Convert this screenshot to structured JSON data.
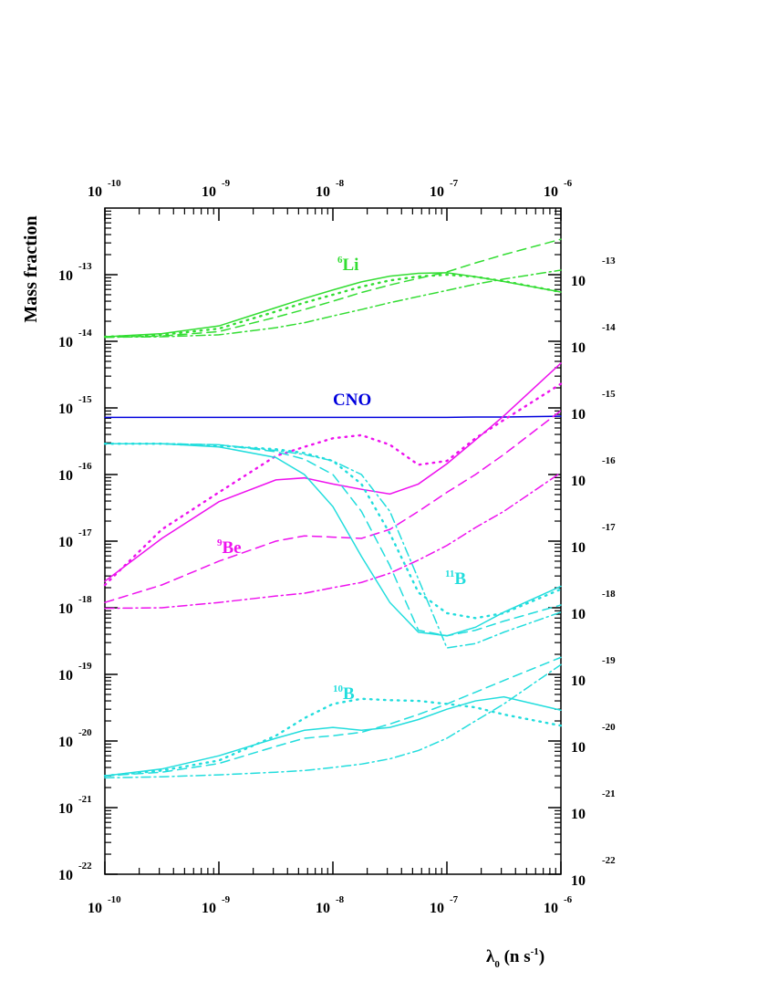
{
  "chart_data": {
    "type": "line",
    "ylabel": "Mass fraction",
    "xlabel": [
      "λ",
      "0",
      " (n s",
      "-1",
      ")"
    ],
    "xscale": "log",
    "yscale": "log",
    "xlim": [
      1e-10,
      1e-06
    ],
    "ylim": [
      1e-22,
      1e-12
    ],
    "xticks": [
      {
        "value": 1e-10,
        "label": "10",
        "exponent": "-10"
      },
      {
        "value": 1e-09,
        "label": "10",
        "exponent": "-9"
      },
      {
        "value": 1e-08,
        "label": "10",
        "exponent": "-8"
      },
      {
        "value": 1e-07,
        "label": "10",
        "exponent": "-7"
      },
      {
        "value": 1e-06,
        "label": "10",
        "exponent": "-6"
      }
    ],
    "yticks": [
      {
        "value": 1e-22,
        "label": "10",
        "exponent": "-22"
      },
      {
        "value": 1e-21,
        "label": "10",
        "exponent": "-21"
      },
      {
        "value": 1e-20,
        "label": "10",
        "exponent": "-20"
      },
      {
        "value": 1e-19,
        "label": "10",
        "exponent": "-19"
      },
      {
        "value": 1e-18,
        "label": "10",
        "exponent": "-18"
      },
      {
        "value": 1e-17,
        "label": "10",
        "exponent": "-17"
      },
      {
        "value": 1e-16,
        "label": "10",
        "exponent": "-16"
      },
      {
        "value": 1e-15,
        "label": "10",
        "exponent": "-15"
      },
      {
        "value": 1e-14,
        "label": "10",
        "exponent": "-14"
      },
      {
        "value": 1e-13,
        "label": "10",
        "exponent": "-13"
      }
    ],
    "x": [
      1e-10,
      3.16e-10,
      1e-09,
      3.16e-09,
      5.62e-09,
      1e-08,
      1.78e-08,
      3.16e-08,
      5.62e-08,
      1e-07,
      1.78e-07,
      3.16e-07,
      1e-06
    ],
    "series": [
      {
        "color": "#33dd33",
        "dash": "solid",
        "values": [
          1.17e-14,
          1.3e-14,
          1.7e-14,
          3.2e-14,
          4.4e-14,
          5.9e-14,
          7.8e-14,
          9.5e-14,
          1.05e-13,
          1.07e-13,
          9.3e-14,
          7.9e-14,
          5.5e-14
        ]
      },
      {
        "color": "#33dd33",
        "dash": "dotted",
        "values": [
          1.17e-14,
          1.25e-14,
          1.55e-14,
          2.8e-14,
          3.8e-14,
          5e-14,
          6.6e-14,
          8.2e-14,
          9.4e-14,
          1e-13,
          9.3e-14,
          8e-14,
          5.5e-14
        ]
      },
      {
        "color": "#33dd33",
        "dash": "dashed",
        "values": [
          1.15e-14,
          1.2e-14,
          1.4e-14,
          2.3e-14,
          3e-14,
          4e-14,
          5.4e-14,
          7e-14,
          8.8e-14,
          1.1e-13,
          1.5e-13,
          2e-13,
          3.4e-13
        ]
      },
      {
        "color": "#33dd33",
        "dash": "dashdot",
        "values": [
          1.15e-14,
          1.17e-14,
          1.25e-14,
          1.6e-14,
          1.9e-14,
          2.4e-14,
          3e-14,
          3.8e-14,
          4.7e-14,
          5.8e-14,
          7.2e-14,
          8.6e-14,
          1.17e-13
        ]
      },
      {
        "color": "#0000dd",
        "dash": "solid",
        "values": [
          7.2e-16,
          7.2e-16,
          7.2e-16,
          7.2e-16,
          7.2e-16,
          7.2e-16,
          7.2e-16,
          7.2e-16,
          7.2e-16,
          7.2e-16,
          7.3e-16,
          7.3e-16,
          7.5e-16
        ]
      },
      {
        "color": "#ee11ee",
        "dash": "solid",
        "values": [
          2.5e-18,
          1.1e-17,
          3.9e-17,
          8.3e-17,
          8.9e-17,
          7.2e-17,
          6e-17,
          5.1e-17,
          7.2e-17,
          1.45e-16,
          3.3e-16,
          7.6e-16,
          4.7e-15
        ]
      },
      {
        "color": "#ee11ee",
        "dash": "dotted",
        "values": [
          2.2e-18,
          1.5e-17,
          5.4e-17,
          1.9e-16,
          2.6e-16,
          3.5e-16,
          3.9e-16,
          2.8e-16,
          1.4e-16,
          1.6e-16,
          3.5e-16,
          6.6e-16,
          2.3e-15
        ]
      },
      {
        "color": "#ee11ee",
        "dash": "dashed",
        "values": [
          1.2e-18,
          2.2e-18,
          5e-18,
          1e-17,
          1.2e-17,
          1.15e-17,
          1.1e-17,
          1.5e-17,
          2.8e-17,
          5.4e-17,
          1e-16,
          2e-16,
          9.1e-16
        ]
      },
      {
        "color": "#ee11ee",
        "dash": "dashdot",
        "values": [
          9.8e-19,
          1e-18,
          1.2e-18,
          1.5e-18,
          1.65e-18,
          2e-18,
          2.4e-18,
          3.3e-18,
          5.2e-18,
          8.6e-18,
          1.6e-17,
          2.8e-17,
          1.07e-16
        ]
      },
      {
        "color": "#22dddd",
        "dash": "solid",
        "values": [
          2.9e-16,
          2.9e-16,
          2.6e-16,
          1.8e-16,
          1e-16,
          3.3e-17,
          5.9e-18,
          1.2e-18,
          4.3e-19,
          3.8e-19,
          5.1e-19,
          8.6e-19,
          2.1e-18
        ]
      },
      {
        "color": "#22dddd",
        "dash": "dotted",
        "values": [
          2.9e-16,
          2.9e-16,
          2.7e-16,
          2.4e-16,
          2.1e-16,
          1.6e-16,
          7.2e-17,
          1.3e-17,
          1.7e-18,
          8.3e-19,
          7e-19,
          8.3e-19,
          1.9e-18
        ]
      },
      {
        "color": "#22dddd",
        "dash": "dashed",
        "values": [
          2.9e-16,
          2.9e-16,
          2.8e-16,
          2.2e-16,
          1.7e-16,
          1e-16,
          2.8e-17,
          4.3e-18,
          4.6e-19,
          3.8e-19,
          4.6e-19,
          6.3e-19,
          1.1e-18
        ]
      },
      {
        "color": "#22dddd",
        "dash": "dashdot",
        "values": [
          2.9e-16,
          2.9e-16,
          2.8e-16,
          2.3e-16,
          2e-16,
          1.6e-16,
          1e-16,
          2.8e-17,
          2.7e-18,
          2.5e-19,
          2.9e-19,
          4.3e-19,
          8.6e-19
        ]
      },
      {
        "color": "#22dddd",
        "dash": "solid",
        "values": [
          3e-21,
          3.8e-21,
          6e-21,
          1.1e-20,
          1.45e-20,
          1.6e-20,
          1.45e-20,
          1.6e-20,
          2.1e-20,
          3e-20,
          4e-20,
          4.6e-20,
          2.9e-20
        ]
      },
      {
        "color": "#22dddd",
        "dash": "dotted",
        "values": [
          3e-21,
          3.6e-21,
          5.1e-21,
          1.2e-20,
          2.2e-20,
          3.6e-20,
          4.3e-20,
          4.1e-20,
          4e-20,
          3.6e-20,
          3.2e-20,
          2.5e-20,
          1.7e-20
        ]
      },
      {
        "color": "#22dddd",
        "dash": "dashed",
        "values": [
          3e-21,
          3.4e-21,
          4.6e-21,
          8.3e-21,
          1.1e-20,
          1.2e-20,
          1.35e-20,
          1.8e-20,
          2.5e-20,
          3.6e-20,
          5.4e-20,
          8.1e-20,
          1.8e-19
        ]
      },
      {
        "color": "#22dddd",
        "dash": "dashdot",
        "values": [
          2.8e-21,
          2.9e-21,
          3.1e-21,
          3.4e-21,
          3.6e-21,
          4e-21,
          4.5e-21,
          5.4e-21,
          7.2e-21,
          1.1e-20,
          2e-20,
          3.6e-20,
          1.4e-19
        ]
      }
    ],
    "annotations": [
      {
        "sup": "6",
        "text": "Li",
        "color": "#33dd33"
      },
      {
        "text": "CNO",
        "color": "#0000dd"
      },
      {
        "sup": "9",
        "text": "Be",
        "color": "#ee11ee"
      },
      {
        "sup": "11",
        "text": "B",
        "color": "#22dddd"
      },
      {
        "sup": "10",
        "text": "B",
        "color": "#22dddd"
      }
    ]
  }
}
